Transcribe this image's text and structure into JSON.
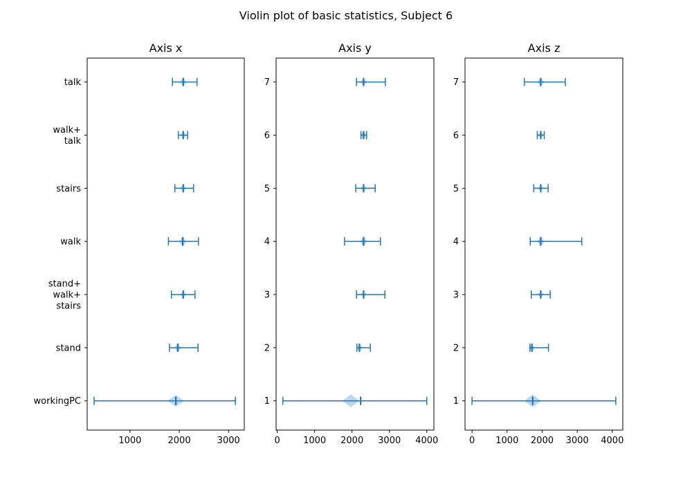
{
  "figure": {
    "title": "Violin plot of basic statistics, Subject 6"
  },
  "colors": {
    "accent": "#1f77b4",
    "violin_fill": "#b8d3ea",
    "axes": "#000000",
    "background": "#ffffff"
  },
  "chart_data": [
    {
      "type": "violin",
      "orientation": "horizontal",
      "title": "Axis x",
      "xlabel": "",
      "ylabel": "",
      "xlim": [
        130,
        3320
      ],
      "ylim": [
        0.45,
        7.45
      ],
      "xticks": [
        1000,
        2000,
        3000
      ],
      "xtick_labels": [
        "1000",
        "2000",
        "3000"
      ],
      "categories": [
        "workingPC",
        "stand",
        "stand+\nwalk+\nstairs",
        "walk",
        "stairs",
        "walk+\ntalk",
        "talk"
      ],
      "positions": [
        1,
        2,
        3,
        4,
        5,
        6,
        7
      ],
      "series": [
        {
          "category": "workingPC",
          "min": 270,
          "max": 3140,
          "mean": 1930,
          "spread": 0.11
        },
        {
          "category": "stand",
          "min": 1800,
          "max": 2380,
          "mean": 1970,
          "spread": 0.09
        },
        {
          "category": "stand+\nwalk+\nstairs",
          "min": 1840,
          "max": 2320,
          "mean": 2080,
          "spread": 0.06
        },
        {
          "category": "walk",
          "min": 1780,
          "max": 2390,
          "mean": 2070,
          "spread": 0.11
        },
        {
          "category": "stairs",
          "min": 1910,
          "max": 2290,
          "mean": 2080,
          "spread": 0.06
        },
        {
          "category": "walk+\ntalk",
          "min": 1980,
          "max": 2170,
          "mean": 2080,
          "spread": 0.06
        },
        {
          "category": "talk",
          "min": 1860,
          "max": 2360,
          "mean": 2080,
          "spread": 0.08
        }
      ]
    },
    {
      "type": "violin",
      "orientation": "horizontal",
      "title": "Axis y",
      "xlabel": "",
      "ylabel": "",
      "xlim": [
        -30,
        4190
      ],
      "ylim": [
        0.45,
        7.45
      ],
      "xticks": [
        0,
        1000,
        2000,
        3000,
        4000
      ],
      "xtick_labels": [
        "0",
        "1000",
        "2000",
        "3000",
        "4000"
      ],
      "categories": [
        "1",
        "2",
        "3",
        "4",
        "5",
        "6",
        "7"
      ],
      "positions": [
        1,
        2,
        3,
        4,
        5,
        6,
        7
      ],
      "series": [
        {
          "category": "1",
          "min": 150,
          "max": 4000,
          "mean": 2230,
          "violin_center": 1970,
          "spread": 0.12
        },
        {
          "category": "2",
          "min": 2130,
          "max": 2490,
          "mean": 2200,
          "spread": 0.07
        },
        {
          "category": "3",
          "min": 2120,
          "max": 2880,
          "mean": 2310,
          "spread": 0.06
        },
        {
          "category": "4",
          "min": 1800,
          "max": 2760,
          "mean": 2310,
          "spread": 0.11
        },
        {
          "category": "5",
          "min": 2100,
          "max": 2620,
          "mean": 2310,
          "spread": 0.06
        },
        {
          "category": "6",
          "min": 2240,
          "max": 2390,
          "mean": 2310,
          "spread": 0.07
        },
        {
          "category": "7",
          "min": 2120,
          "max": 2890,
          "mean": 2310,
          "spread": 0.07
        }
      ]
    },
    {
      "type": "violin",
      "orientation": "horizontal",
      "title": "Axis z",
      "xlabel": "",
      "ylabel": "",
      "xlim": [
        -200,
        4300
      ],
      "ylim": [
        0.45,
        7.45
      ],
      "xticks": [
        0,
        1000,
        2000,
        3000,
        4000
      ],
      "xtick_labels": [
        "0",
        "1000",
        "2000",
        "3000",
        "4000"
      ],
      "categories": [
        "1",
        "2",
        "3",
        "4",
        "5",
        "6",
        "7"
      ],
      "positions": [
        1,
        2,
        3,
        4,
        5,
        6,
        7
      ],
      "series": [
        {
          "category": "1",
          "min": 0,
          "max": 4100,
          "mean": 1730,
          "spread": 0.12
        },
        {
          "category": "2",
          "min": 1650,
          "max": 2180,
          "mean": 1710,
          "spread": 0.07
        },
        {
          "category": "3",
          "min": 1690,
          "max": 2230,
          "mean": 1960,
          "spread": 0.05
        },
        {
          "category": "4",
          "min": 1660,
          "max": 3130,
          "mean": 1960,
          "spread": 0.11
        },
        {
          "category": "5",
          "min": 1760,
          "max": 2170,
          "mean": 1960,
          "spread": 0.05
        },
        {
          "category": "6",
          "min": 1860,
          "max": 2060,
          "mean": 1960,
          "spread": 0.05
        },
        {
          "category": "7",
          "min": 1490,
          "max": 2660,
          "mean": 1960,
          "spread": 0.09
        }
      ]
    }
  ]
}
